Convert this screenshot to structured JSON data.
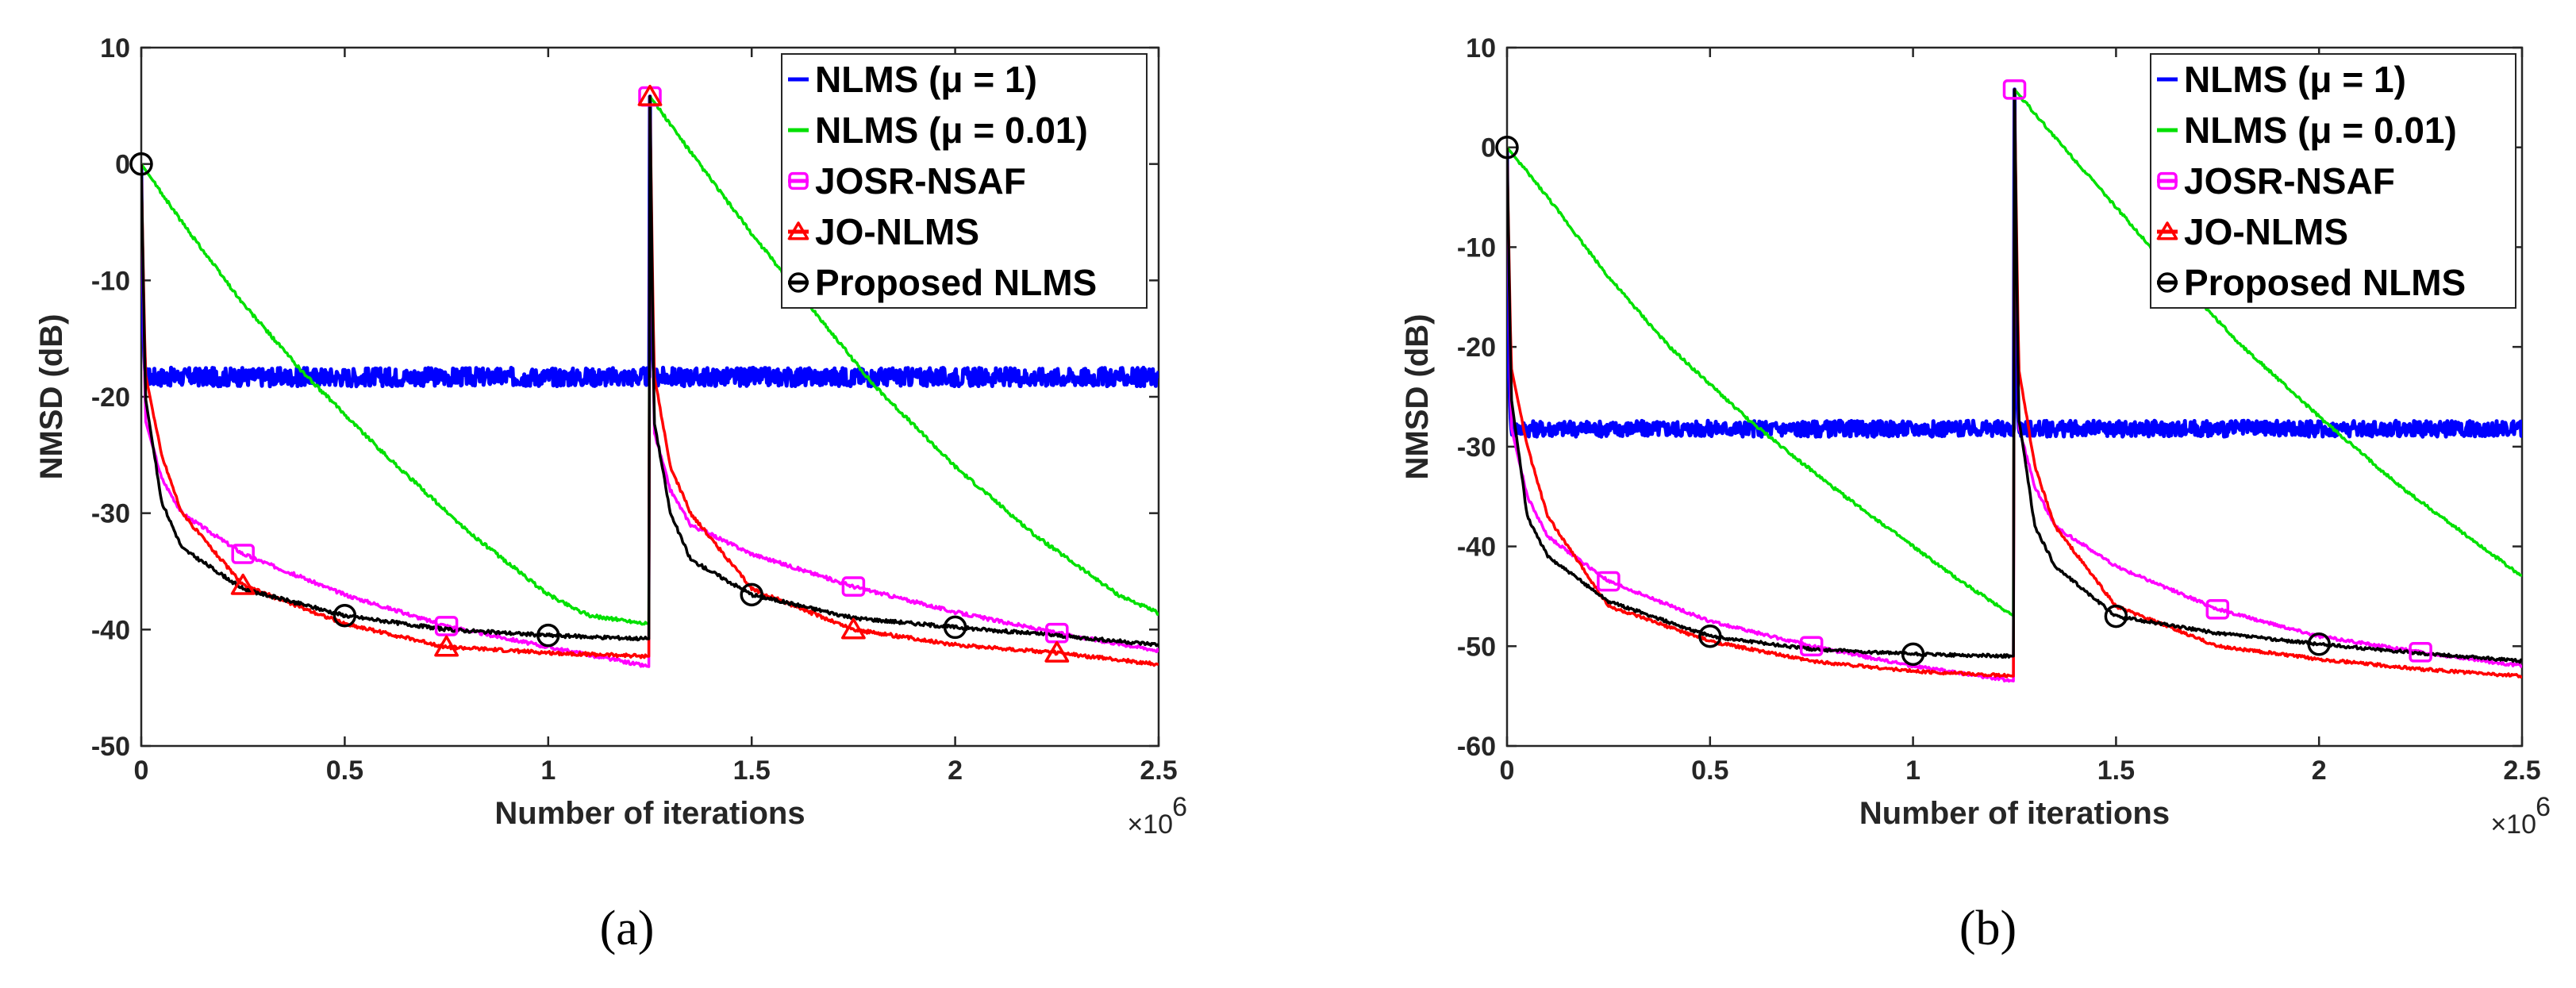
{
  "chart_data": [
    {
      "type": "line",
      "caption": "(a)",
      "xlabel": "Number of iterations",
      "ylabel": "NMSD (dB)",
      "x_multiplier": "×10",
      "x_multiplier_exp": "6",
      "xlim": [
        0,
        2.5
      ],
      "ylim": [
        -50,
        10
      ],
      "xticks": [
        "0",
        "0.5",
        "1",
        "1.5",
        "2",
        "2.5"
      ],
      "yticks": [
        "10",
        "0",
        "-10",
        "-20",
        "-30",
        "-40",
        "-50"
      ],
      "legend_position": "top-right",
      "colors": {
        "nlms_mu1": "#0000ff",
        "nlms_mu001": "#00e000",
        "josr": "#ff00ff",
        "jo": "#ff0000",
        "proposed": "#000000"
      },
      "series": [
        {
          "name": "NLMS (μ = 1)",
          "key": "nlms_mu1",
          "marker": "none",
          "x": [
            0,
            0.002,
            0.01,
            1.249,
            1.25,
            1.252,
            1.26,
            2.5
          ],
          "y": [
            0,
            -12,
            -18.3,
            -18.3,
            5.8,
            -12,
            -18.3,
            -18.3
          ]
        },
        {
          "name": "NLMS (μ = 0.01)",
          "key": "nlms_mu001",
          "marker": "none",
          "x": [
            0,
            0.1,
            0.25,
            0.4,
            0.6,
            0.8,
            1.0,
            1.1,
            1.249,
            1.25,
            1.35,
            1.5,
            1.65,
            1.8,
            2.0,
            2.2,
            2.4,
            2.5
          ],
          "y": [
            0,
            -5,
            -12,
            -18,
            -25,
            -31.5,
            -37,
            -38.8,
            -39.5,
            5.8,
            1,
            -6,
            -12.5,
            -19,
            -26,
            -32,
            -37,
            -38.6
          ]
        },
        {
          "name": "JOSR-NSAF",
          "key": "josr",
          "marker": "square",
          "x": [
            0,
            0.01,
            0.05,
            0.1,
            0.25,
            0.5,
            0.75,
            1.0,
            1.249,
            1.25,
            1.26,
            1.3,
            1.35,
            1.5,
            1.75,
            2.0,
            2.25,
            2.5
          ],
          "y": [
            0,
            -22,
            -27,
            -30,
            -33.5,
            -37,
            -39.7,
            -41.5,
            -43.2,
            5.8,
            -23,
            -28,
            -31,
            -33.5,
            -36.3,
            -38.5,
            -40.3,
            -41.8
          ],
          "marker_x": [
            0.25,
            0.75,
            1.25,
            1.75,
            2.25
          ]
        },
        {
          "name": "JO-NLMS",
          "key": "jo",
          "marker": "triangle",
          "x": [
            0,
            0.01,
            0.05,
            0.1,
            0.25,
            0.5,
            0.75,
            1.0,
            1.249,
            1.25,
            1.26,
            1.3,
            1.35,
            1.5,
            1.75,
            2.0,
            2.25,
            2.5
          ],
          "y": [
            0,
            -18,
            -25,
            -30,
            -36.2,
            -39.5,
            -41.5,
            -42,
            -42.3,
            5.8,
            -18,
            -26,
            -30,
            -36.5,
            -40,
            -41.3,
            -42,
            -43
          ],
          "marker_x": [
            0.25,
            0.75,
            1.25,
            1.75,
            2.25
          ]
        },
        {
          "name": "Proposed NLMS",
          "key": "proposed",
          "marker": "circle",
          "x": [
            0,
            0.01,
            0.05,
            0.1,
            0.25,
            0.5,
            0.75,
            1.0,
            1.249,
            1.25,
            1.26,
            1.3,
            1.35,
            1.5,
            1.75,
            2.0,
            2.25,
            2.5
          ],
          "y": [
            0,
            -20,
            -29,
            -33,
            -36.5,
            -38.8,
            -40,
            -40.5,
            -40.8,
            5.8,
            -22,
            -30,
            -34,
            -37,
            -39,
            -39.8,
            -40.5,
            -41.3
          ],
          "marker_x": [
            0,
            0.5,
            1.0,
            1.5,
            2.0
          ]
        }
      ]
    },
    {
      "type": "line",
      "caption": "(b)",
      "xlabel": "Number of iterations",
      "ylabel": "NMSD (dB)",
      "x_multiplier": "×10",
      "x_multiplier_exp": "6",
      "xlim": [
        0,
        2.5
      ],
      "ylim": [
        -60,
        10
      ],
      "xticks": [
        "0",
        "0.5",
        "1",
        "1.5",
        "2",
        "2.5"
      ],
      "yticks": [
        "10",
        "0",
        "-10",
        "-20",
        "-30",
        "-40",
        "-50",
        "-60"
      ],
      "legend_position": "top-right",
      "colors": {
        "nlms_mu1": "#0000ff",
        "nlms_mu001": "#00e000",
        "josr": "#ff00ff",
        "jo": "#ff0000",
        "proposed": "#000000"
      },
      "series": [
        {
          "name": "NLMS (μ = 1)",
          "key": "nlms_mu1",
          "marker": "none",
          "x": [
            0,
            0.002,
            0.01,
            1.249,
            1.25,
            1.252,
            1.26,
            2.5
          ],
          "y": [
            0,
            -20,
            -28.2,
            -28.2,
            5.8,
            -20,
            -28.2,
            -28.2
          ]
        },
        {
          "name": "NLMS (μ = 0.01)",
          "key": "nlms_mu001",
          "marker": "none",
          "x": [
            0,
            0.1,
            0.25,
            0.4,
            0.6,
            0.8,
            1.0,
            1.1,
            1.249,
            1.25,
            1.35,
            1.5,
            1.65,
            1.8,
            2.0,
            2.2,
            2.4,
            2.5
          ],
          "y": [
            0,
            -5,
            -13,
            -20,
            -27.5,
            -34,
            -40,
            -43,
            -47,
            5.8,
            1,
            -6,
            -13,
            -19.5,
            -27,
            -34,
            -40,
            -43
          ]
        },
        {
          "name": "JOSR-NSAF",
          "key": "josr",
          "marker": "square",
          "x": [
            0,
            0.01,
            0.05,
            0.1,
            0.25,
            0.5,
            0.75,
            1.0,
            1.249,
            1.25,
            1.26,
            1.3,
            1.35,
            1.5,
            1.75,
            2.0,
            2.25,
            2.5
          ],
          "y": [
            0,
            -28,
            -35,
            -39,
            -43.5,
            -47.5,
            -50,
            -52,
            -53.5,
            5.8,
            -28,
            -34,
            -38,
            -42,
            -46.3,
            -49,
            -50.6,
            -52
          ],
          "marker_x": [
            0.25,
            0.75,
            1.25,
            1.75,
            2.25
          ]
        },
        {
          "name": "JO-NLMS",
          "key": "jo",
          "marker": "triangle",
          "x": [
            0,
            0.01,
            0.05,
            0.1,
            0.25,
            0.5,
            0.75,
            1.0,
            1.249,
            1.25,
            1.26,
            1.3,
            1.35,
            1.5,
            1.75,
            2.0,
            2.25,
            2.5
          ],
          "y": [
            0,
            -22,
            -30,
            -37,
            -46,
            -49.5,
            -51.5,
            -52.5,
            -53,
            5.8,
            -22,
            -32,
            -38,
            -46,
            -50,
            -51.3,
            -52.3,
            -53
          ]
        },
        {
          "name": "Proposed NLMS",
          "key": "proposed",
          "marker": "circle",
          "x": [
            0,
            0.01,
            0.05,
            0.1,
            0.25,
            0.5,
            0.75,
            1.0,
            1.249,
            1.25,
            1.26,
            1.3,
            1.35,
            1.5,
            1.75,
            2.0,
            2.25,
            2.5
          ],
          "y": [
            0,
            -25,
            -37,
            -41,
            -45.5,
            -49,
            -50.3,
            -50.8,
            -51,
            5.8,
            -27,
            -38,
            -42,
            -47,
            -48.7,
            -49.8,
            -50.7,
            -51.5
          ],
          "marker_x": [
            0,
            0.5,
            1.0,
            1.5,
            2.0
          ]
        }
      ]
    }
  ]
}
